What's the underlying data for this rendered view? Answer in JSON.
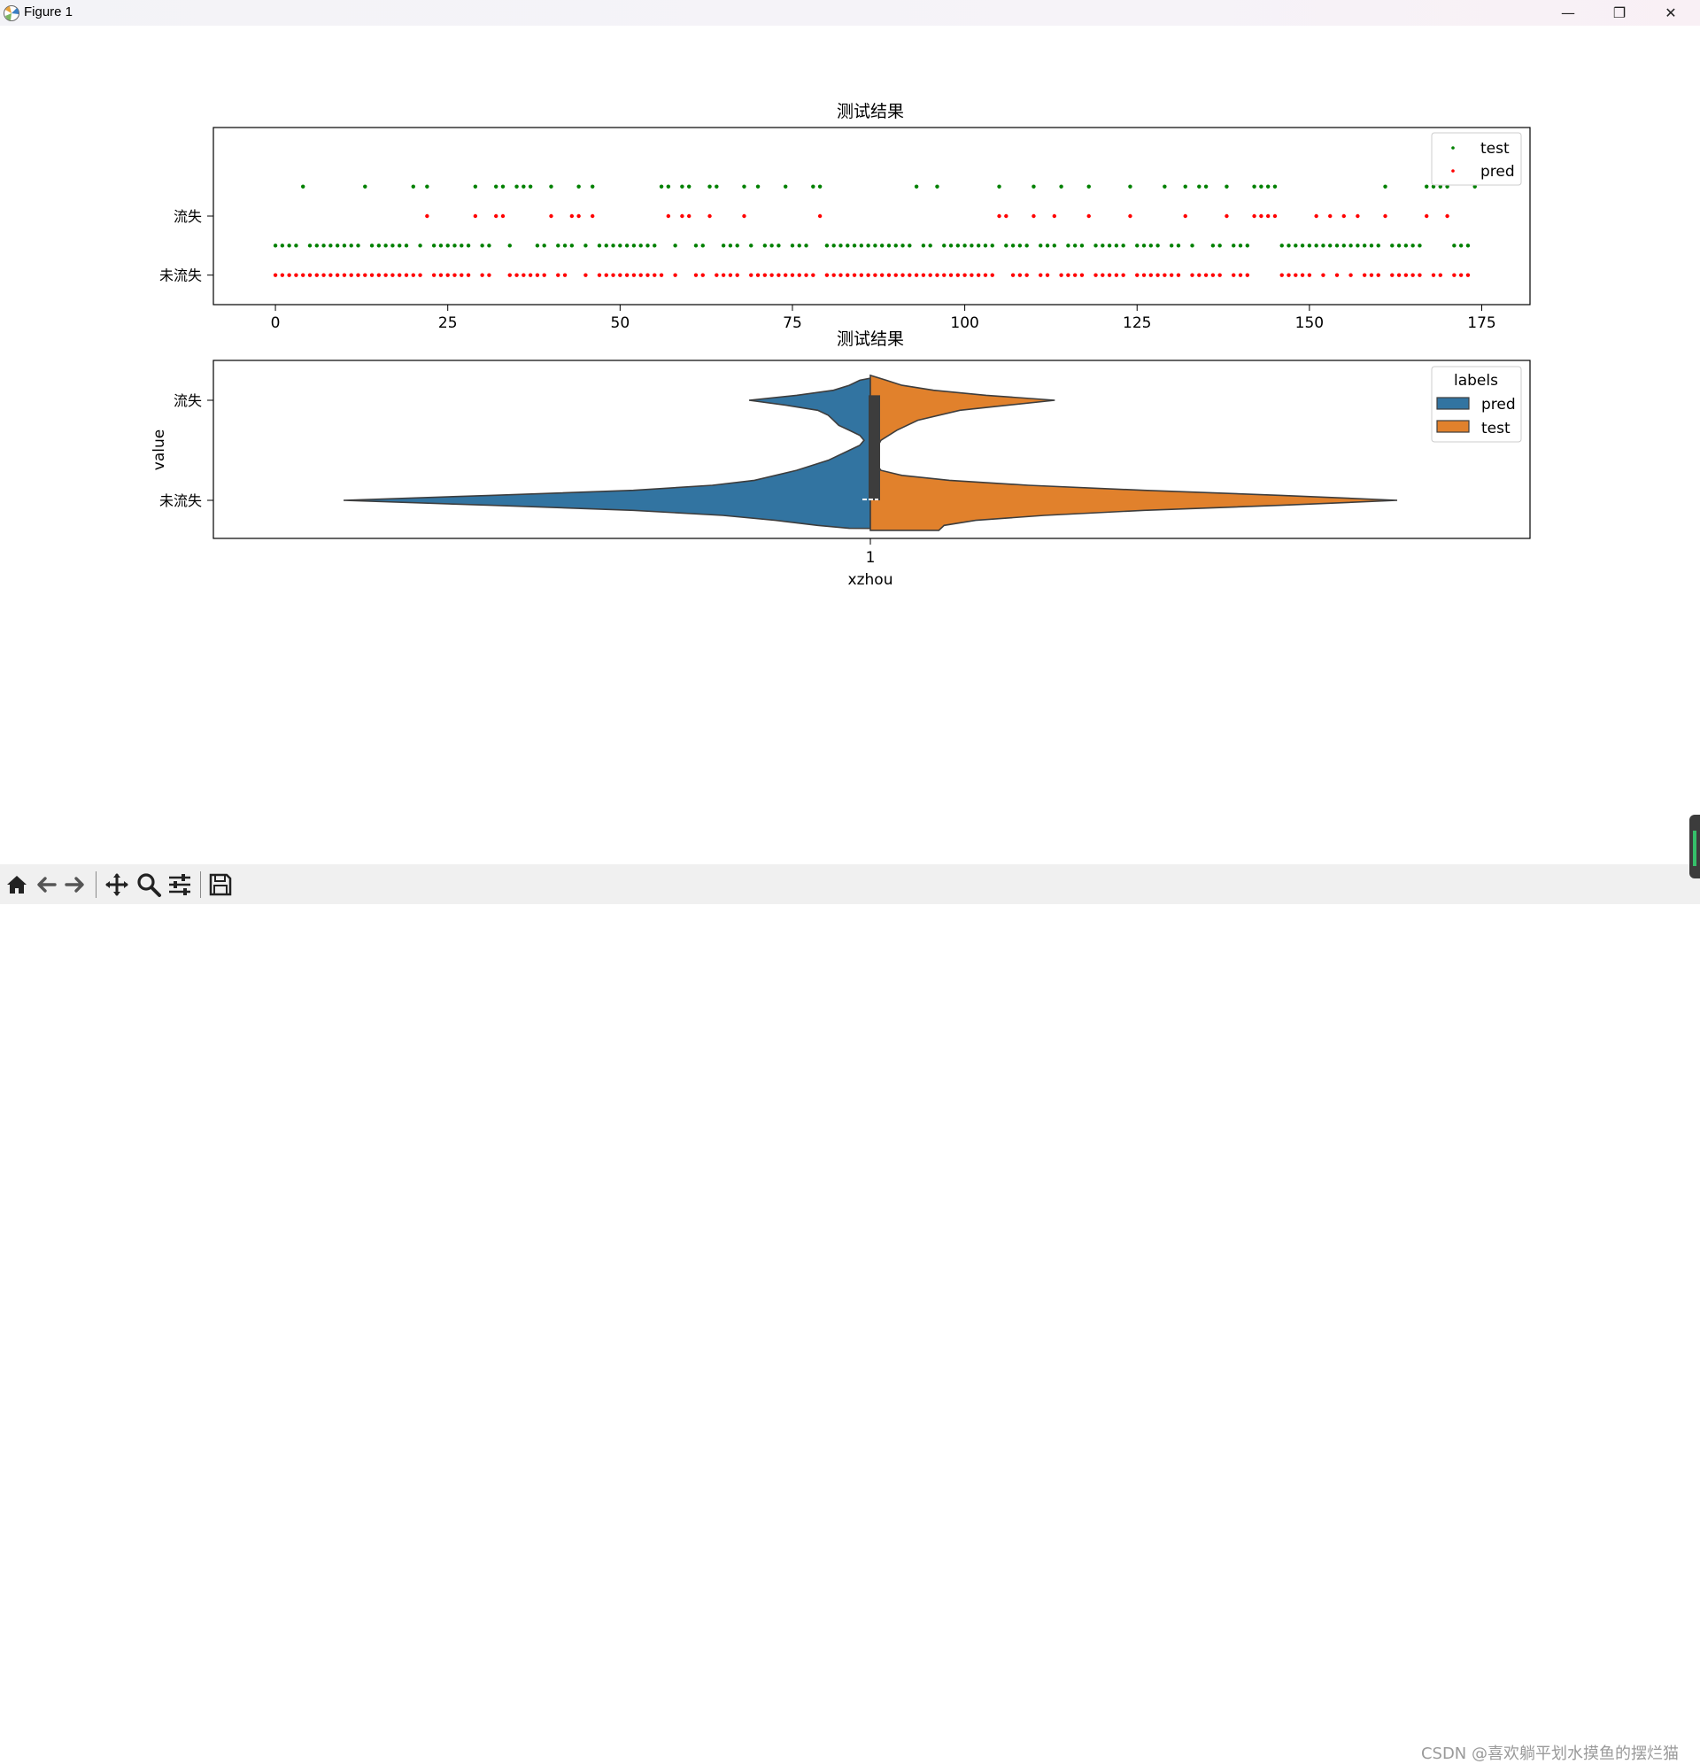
{
  "window": {
    "title": "Figure 1",
    "controls": {
      "minimize": "—",
      "maximize": "❐",
      "close": "✕"
    }
  },
  "toolbar": {
    "buttons": [
      "home-icon",
      "back-icon",
      "forward-icon",
      "pan-icon",
      "zoom-icon",
      "configure-subplots-icon",
      "save-icon"
    ]
  },
  "watermark": "CSDN @喜欢躺平划水摸鱼的摆烂猫",
  "chart_data": [
    {
      "type": "scatter",
      "title": "测试结果",
      "xlim": [
        -9,
        182
      ],
      "ylim": [
        -0.5,
        2.5
      ],
      "xticks": [
        0,
        25,
        50,
        75,
        100,
        125,
        150,
        175
      ],
      "yticks": [
        {
          "value": 0,
          "label": "未流失"
        },
        {
          "value": 1,
          "label": "流失"
        }
      ],
      "legend": {
        "position": "top-right",
        "entries": [
          "test",
          "pred"
        ]
      },
      "series": [
        {
          "name": "test",
          "color": "#008000",
          "y_offset": 0.5,
          "positive_x": [
            4,
            13,
            20,
            22,
            29,
            32,
            33,
            35,
            36,
            37,
            40,
            44,
            46,
            56,
            57,
            59,
            60,
            63,
            64,
            68,
            70,
            74,
            78,
            79,
            93,
            96,
            105,
            110,
            114,
            118,
            124,
            129,
            132,
            134,
            135,
            138,
            142,
            143,
            144,
            145,
            161,
            167,
            168,
            169,
            170,
            174
          ],
          "negative_x": [
            0,
            1,
            2,
            3,
            5,
            6,
            7,
            8,
            9,
            10,
            11,
            12,
            14,
            15,
            16,
            17,
            18,
            19,
            21,
            23,
            24,
            25,
            26,
            27,
            28,
            30,
            31,
            34,
            38,
            39,
            41,
            42,
            43,
            45,
            47,
            48,
            49,
            50,
            51,
            52,
            53,
            54,
            55,
            58,
            61,
            62,
            65,
            66,
            67,
            69,
            71,
            72,
            73,
            75,
            76,
            77,
            80,
            81,
            82,
            83,
            84,
            85,
            86,
            87,
            88,
            89,
            90,
            91,
            92,
            94,
            95,
            97,
            98,
            99,
            100,
            101,
            102,
            103,
            104,
            106,
            107,
            108,
            109,
            111,
            112,
            113,
            115,
            116,
            117,
            119,
            120,
            121,
            122,
            123,
            125,
            126,
            127,
            128,
            130,
            131,
            133,
            136,
            137,
            139,
            140,
            141,
            146,
            147,
            148,
            149,
            150,
            151,
            152,
            153,
            154,
            155,
            156,
            157,
            158,
            159,
            160,
            162,
            163,
            164,
            165,
            166,
            171,
            172,
            173
          ]
        },
        {
          "name": "pred",
          "color": "#ff0000",
          "y_offset": 0,
          "positive_x": [
            22,
            29,
            32,
            33,
            40,
            43,
            44,
            46,
            57,
            59,
            60,
            63,
            68,
            79,
            105,
            106,
            110,
            113,
            118,
            124,
            132,
            138,
            142,
            143,
            144,
            145,
            151,
            153,
            155,
            157,
            161,
            167,
            170
          ],
          "negative_x": [
            0,
            1,
            2,
            3,
            4,
            5,
            6,
            7,
            8,
            9,
            10,
            11,
            12,
            13,
            14,
            15,
            16,
            17,
            18,
            19,
            20,
            21,
            23,
            24,
            25,
            26,
            27,
            28,
            30,
            31,
            34,
            35,
            36,
            37,
            38,
            39,
            41,
            42,
            45,
            47,
            48,
            49,
            50,
            51,
            52,
            53,
            54,
            55,
            56,
            58,
            61,
            62,
            64,
            65,
            66,
            67,
            69,
            70,
            71,
            72,
            73,
            74,
            75,
            76,
            77,
            78,
            80,
            81,
            82,
            83,
            84,
            85,
            86,
            87,
            88,
            89,
            90,
            91,
            92,
            93,
            94,
            95,
            96,
            97,
            98,
            99,
            100,
            101,
            102,
            103,
            104,
            107,
            108,
            109,
            111,
            112,
            114,
            115,
            116,
            117,
            119,
            120,
            121,
            122,
            123,
            125,
            126,
            127,
            128,
            129,
            130,
            131,
            133,
            134,
            135,
            136,
            137,
            139,
            140,
            141,
            146,
            147,
            148,
            149,
            150,
            152,
            154,
            156,
            158,
            159,
            160,
            162,
            163,
            164,
            165,
            166,
            168,
            169,
            171,
            172,
            173
          ]
        }
      ]
    },
    {
      "type": "violin",
      "title": "测试结果",
      "xlabel": "xzhou",
      "ylabel": "value",
      "xticks": [
        "1"
      ],
      "yticks": [
        "流失",
        "未流失"
      ],
      "ylim": [
        -0.28,
        1.5
      ],
      "legend": {
        "title": "labels",
        "position": "top-right",
        "entries": [
          "pred",
          "test"
        ]
      },
      "split": true,
      "series": [
        {
          "name": "pred",
          "color": "#3274a1",
          "side": "left",
          "profile": [
            [
              -0.28,
              0.04
            ],
            [
              -0.25,
              0.1
            ],
            [
              -0.2,
              0.18
            ],
            [
              -0.15,
              0.28
            ],
            [
              -0.1,
              0.45
            ],
            [
              -0.05,
              0.72
            ],
            [
              0,
              1.0
            ],
            [
              0.05,
              0.72
            ],
            [
              0.1,
              0.45
            ],
            [
              0.15,
              0.3
            ],
            [
              0.2,
              0.22
            ],
            [
              0.3,
              0.14
            ],
            [
              0.4,
              0.08
            ],
            [
              0.5,
              0.04
            ],
            [
              0.55,
              0.02
            ],
            [
              0.6,
              0.012
            ],
            [
              0.65,
              0.02
            ],
            [
              0.7,
              0.04
            ],
            [
              0.75,
              0.06
            ],
            [
              0.8,
              0.07
            ],
            [
              0.85,
              0.08
            ],
            [
              0.9,
              0.1
            ],
            [
              0.95,
              0.16
            ],
            [
              1.0,
              0.23
            ],
            [
              1.05,
              0.14
            ],
            [
              1.1,
              0.07
            ],
            [
              1.15,
              0.04
            ],
            [
              1.2,
              0.02
            ],
            [
              1.22,
              0.0
            ]
          ]
        },
        {
          "name": "test",
          "color": "#e1812c",
          "side": "right",
          "profile": [
            [
              -0.3,
              0.13
            ],
            [
              -0.25,
              0.14
            ],
            [
              -0.2,
              0.2
            ],
            [
              -0.15,
              0.33
            ],
            [
              -0.1,
              0.52
            ],
            [
              -0.05,
              0.78
            ],
            [
              0,
              1.0
            ],
            [
              0.05,
              0.78
            ],
            [
              0.1,
              0.52
            ],
            [
              0.15,
              0.3
            ],
            [
              0.2,
              0.15
            ],
            [
              0.25,
              0.06
            ],
            [
              0.3,
              0.02
            ],
            [
              0.35,
              0.013
            ],
            [
              0.4,
              0.01
            ],
            [
              0.45,
              0.01
            ],
            [
              0.5,
              0.012
            ],
            [
              0.55,
              0.015
            ],
            [
              0.6,
              0.02
            ],
            [
              0.7,
              0.05
            ],
            [
              0.8,
              0.09
            ],
            [
              0.9,
              0.17
            ],
            [
              1.0,
              0.35
            ],
            [
              1.05,
              0.22
            ],
            [
              1.1,
              0.12
            ],
            [
              1.15,
              0.06
            ],
            [
              1.2,
              0.03
            ],
            [
              1.25,
              0.0
            ]
          ]
        }
      ],
      "box": {
        "q1": 0,
        "q3": 1.05,
        "median": 0,
        "color": "#3d3d3d"
      }
    }
  ]
}
